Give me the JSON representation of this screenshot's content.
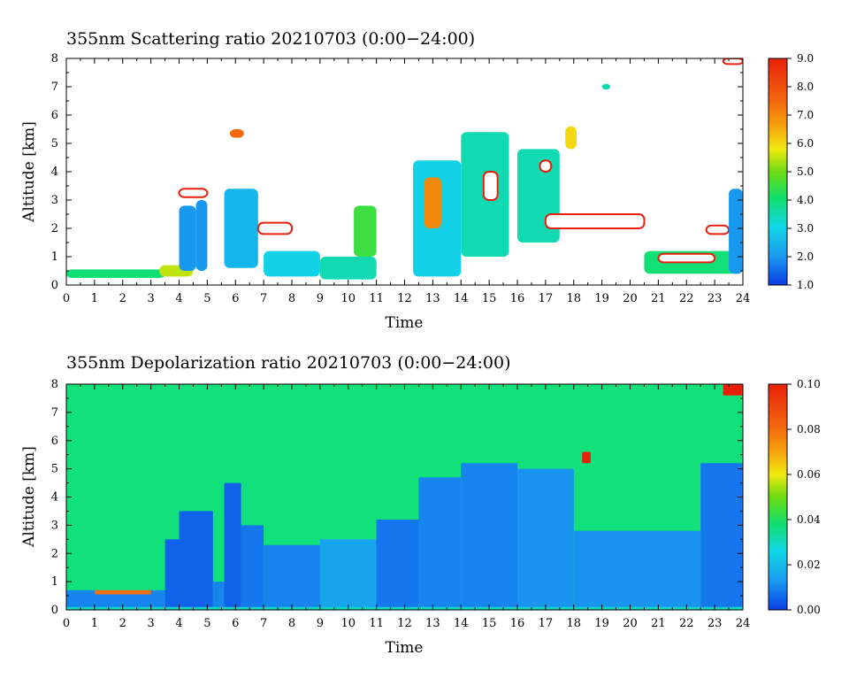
{
  "chart_data": [
    {
      "type": "heatmap",
      "title": "355nm Scattering ratio  20210703 (0:00−24:00)",
      "xlabel": "Time",
      "ylabel": "Altitude [km]",
      "xlim": [
        0,
        24
      ],
      "ylim": [
        0,
        8
      ],
      "x_ticks": [
        "0",
        "1",
        "2",
        "3",
        "4",
        "5",
        "6",
        "7",
        "8",
        "9",
        "10",
        "11",
        "12",
        "13",
        "14",
        "15",
        "16",
        "17",
        "18",
        "19",
        "20",
        "21",
        "22",
        "23",
        "24"
      ],
      "y_ticks": [
        "0",
        "1",
        "2",
        "3",
        "4",
        "5",
        "6",
        "7",
        "8"
      ],
      "colorbar": {
        "min": 1.0,
        "max": 9.0,
        "ticks": [
          "1.0",
          "2.0",
          "3.0",
          "4.0",
          "5.0",
          "6.0",
          "7.0",
          "8.0",
          "9.0"
        ],
        "tick_values": [
          1,
          2,
          3,
          4,
          5,
          6,
          7,
          8,
          9
        ]
      },
      "background_color": "#ffffff",
      "features": [
        {
          "t0": 0.0,
          "t1": 3.5,
          "z0": 0.25,
          "z1": 0.55,
          "value": 4.0
        },
        {
          "t0": 3.3,
          "t1": 4.5,
          "z0": 0.3,
          "z1": 0.7,
          "value": 5.5
        },
        {
          "t0": 4.0,
          "t1": 4.6,
          "z0": 0.5,
          "z1": 2.8,
          "value": 2.0
        },
        {
          "t0": 4.6,
          "t1": 5.0,
          "z0": 0.5,
          "z1": 3.0,
          "value": 2.0
        },
        {
          "t0": 4.0,
          "t1": 5.0,
          "z0": 3.1,
          "z1": 3.4,
          "value": 8.5
        },
        {
          "t0": 5.6,
          "t1": 6.8,
          "z0": 0.6,
          "z1": 3.4,
          "value": 2.5
        },
        {
          "t0": 5.8,
          "t1": 6.3,
          "z0": 5.2,
          "z1": 5.5,
          "value": 7.5
        },
        {
          "t0": 6.8,
          "t1": 8.0,
          "z0": 1.8,
          "z1": 2.2,
          "value": 8.5
        },
        {
          "t0": 7.0,
          "t1": 9.0,
          "z0": 0.3,
          "z1": 1.2,
          "value": 3.0
        },
        {
          "t0": 9.0,
          "t1": 11.0,
          "z0": 0.2,
          "z1": 1.0,
          "value": 3.5
        },
        {
          "t0": 10.2,
          "t1": 11.0,
          "z0": 1.0,
          "z1": 2.8,
          "value": 4.5
        },
        {
          "t0": 12.3,
          "t1": 14.0,
          "z0": 0.3,
          "z1": 4.4,
          "value": 3.0
        },
        {
          "t0": 12.7,
          "t1": 13.3,
          "z0": 2.0,
          "z1": 3.8,
          "value": 7.0
        },
        {
          "t0": 14.0,
          "t1": 15.7,
          "z0": 1.0,
          "z1": 5.4,
          "value": 3.5
        },
        {
          "t0": 14.8,
          "t1": 15.3,
          "z0": 3.0,
          "z1": 4.0,
          "value": 8.5
        },
        {
          "t0": 16.0,
          "t1": 17.5,
          "z0": 1.5,
          "z1": 4.8,
          "value": 3.5
        },
        {
          "t0": 16.8,
          "t1": 17.2,
          "z0": 4.0,
          "z1": 4.4,
          "value": 9.0
        },
        {
          "t0": 17.0,
          "t1": 20.5,
          "z0": 2.0,
          "z1": 2.5,
          "value": 8.5
        },
        {
          "t0": 17.7,
          "t1": 18.1,
          "z0": 4.8,
          "z1": 5.6,
          "value": 6.0
        },
        {
          "t0": 19.0,
          "t1": 19.3,
          "z0": 6.9,
          "z1": 7.1,
          "value": 3.5
        },
        {
          "t0": 20.5,
          "t1": 24.0,
          "z0": 0.4,
          "z1": 1.2,
          "value": 4.0
        },
        {
          "t0": 21.0,
          "t1": 23.0,
          "z0": 0.8,
          "z1": 1.1,
          "value": 9.0
        },
        {
          "t0": 22.7,
          "t1": 23.5,
          "z0": 1.8,
          "z1": 2.1,
          "value": 8.5
        },
        {
          "t0": 23.5,
          "t1": 24.0,
          "z0": 0.4,
          "z1": 3.4,
          "value": 2.0
        },
        {
          "t0": 23.3,
          "t1": 24.0,
          "z0": 7.8,
          "z1": 8.0,
          "value": 8.5
        }
      ]
    },
    {
      "type": "heatmap",
      "title": "355nm Depolarization ratio  20210703 (0:00−24:00)",
      "xlabel": "Time",
      "ylabel": "Altitude [km]",
      "xlim": [
        0,
        24
      ],
      "ylim": [
        0,
        8
      ],
      "x_ticks": [
        "0",
        "1",
        "2",
        "3",
        "4",
        "5",
        "6",
        "7",
        "8",
        "9",
        "10",
        "11",
        "12",
        "13",
        "14",
        "15",
        "16",
        "17",
        "18",
        "19",
        "20",
        "21",
        "22",
        "23",
        "24"
      ],
      "y_ticks": [
        "0",
        "1",
        "2",
        "3",
        "4",
        "5",
        "6",
        "7",
        "8"
      ],
      "colorbar": {
        "min": 0.0,
        "max": 0.1,
        "ticks": [
          "0.00",
          "0.02",
          "0.04",
          "0.06",
          "0.08",
          "0.10"
        ],
        "tick_values": [
          0,
          0.02,
          0.04,
          0.06,
          0.08,
          0.1
        ]
      },
      "background_value": 0.04,
      "features": [
        {
          "t0": 0.0,
          "t1": 3.5,
          "z0": 0.0,
          "z1": 0.7,
          "value": 0.01
        },
        {
          "t0": 3.5,
          "t1": 4.0,
          "z0": 0.0,
          "z1": 2.5,
          "value": 0.005
        },
        {
          "t0": 4.0,
          "t1": 5.2,
          "z0": 0.0,
          "z1": 3.5,
          "value": 0.005
        },
        {
          "t0": 5.2,
          "t1": 5.6,
          "z0": 0.0,
          "z1": 1.0,
          "value": 0.01
        },
        {
          "t0": 5.6,
          "t1": 6.2,
          "z0": 0.0,
          "z1": 4.5,
          "value": 0.005
        },
        {
          "t0": 6.2,
          "t1": 7.0,
          "z0": 0.0,
          "z1": 3.0,
          "value": 0.008
        },
        {
          "t0": 7.0,
          "t1": 9.0,
          "z0": 0.0,
          "z1": 2.3,
          "value": 0.01
        },
        {
          "t0": 9.0,
          "t1": 11.0,
          "z0": 0.0,
          "z1": 2.5,
          "value": 0.015
        },
        {
          "t0": 11.0,
          "t1": 12.5,
          "z0": 0.0,
          "z1": 3.2,
          "value": 0.008
        },
        {
          "t0": 12.5,
          "t1": 14.0,
          "z0": 0.0,
          "z1": 4.7,
          "value": 0.01
        },
        {
          "t0": 14.0,
          "t1": 16.0,
          "z0": 0.0,
          "z1": 5.2,
          "value": 0.01
        },
        {
          "t0": 16.0,
          "t1": 18.0,
          "z0": 0.0,
          "z1": 5.0,
          "value": 0.012
        },
        {
          "t0": 18.0,
          "t1": 22.5,
          "z0": 0.0,
          "z1": 2.8,
          "value": 0.012
        },
        {
          "t0": 22.5,
          "t1": 24.0,
          "z0": 0.0,
          "z1": 5.2,
          "value": 0.008
        },
        {
          "t0": 0.0,
          "t1": 24.0,
          "z0": 0.0,
          "z1": 0.1,
          "value": 0.03
        },
        {
          "t0": 1.0,
          "t1": 3.0,
          "z0": 0.55,
          "z1": 0.7,
          "value": 0.08
        },
        {
          "t0": 18.3,
          "t1": 18.6,
          "z0": 5.2,
          "z1": 5.6,
          "value": 0.1
        },
        {
          "t0": 23.3,
          "t1": 24.0,
          "z0": 7.6,
          "z1": 8.0,
          "value": 0.1
        }
      ]
    }
  ]
}
